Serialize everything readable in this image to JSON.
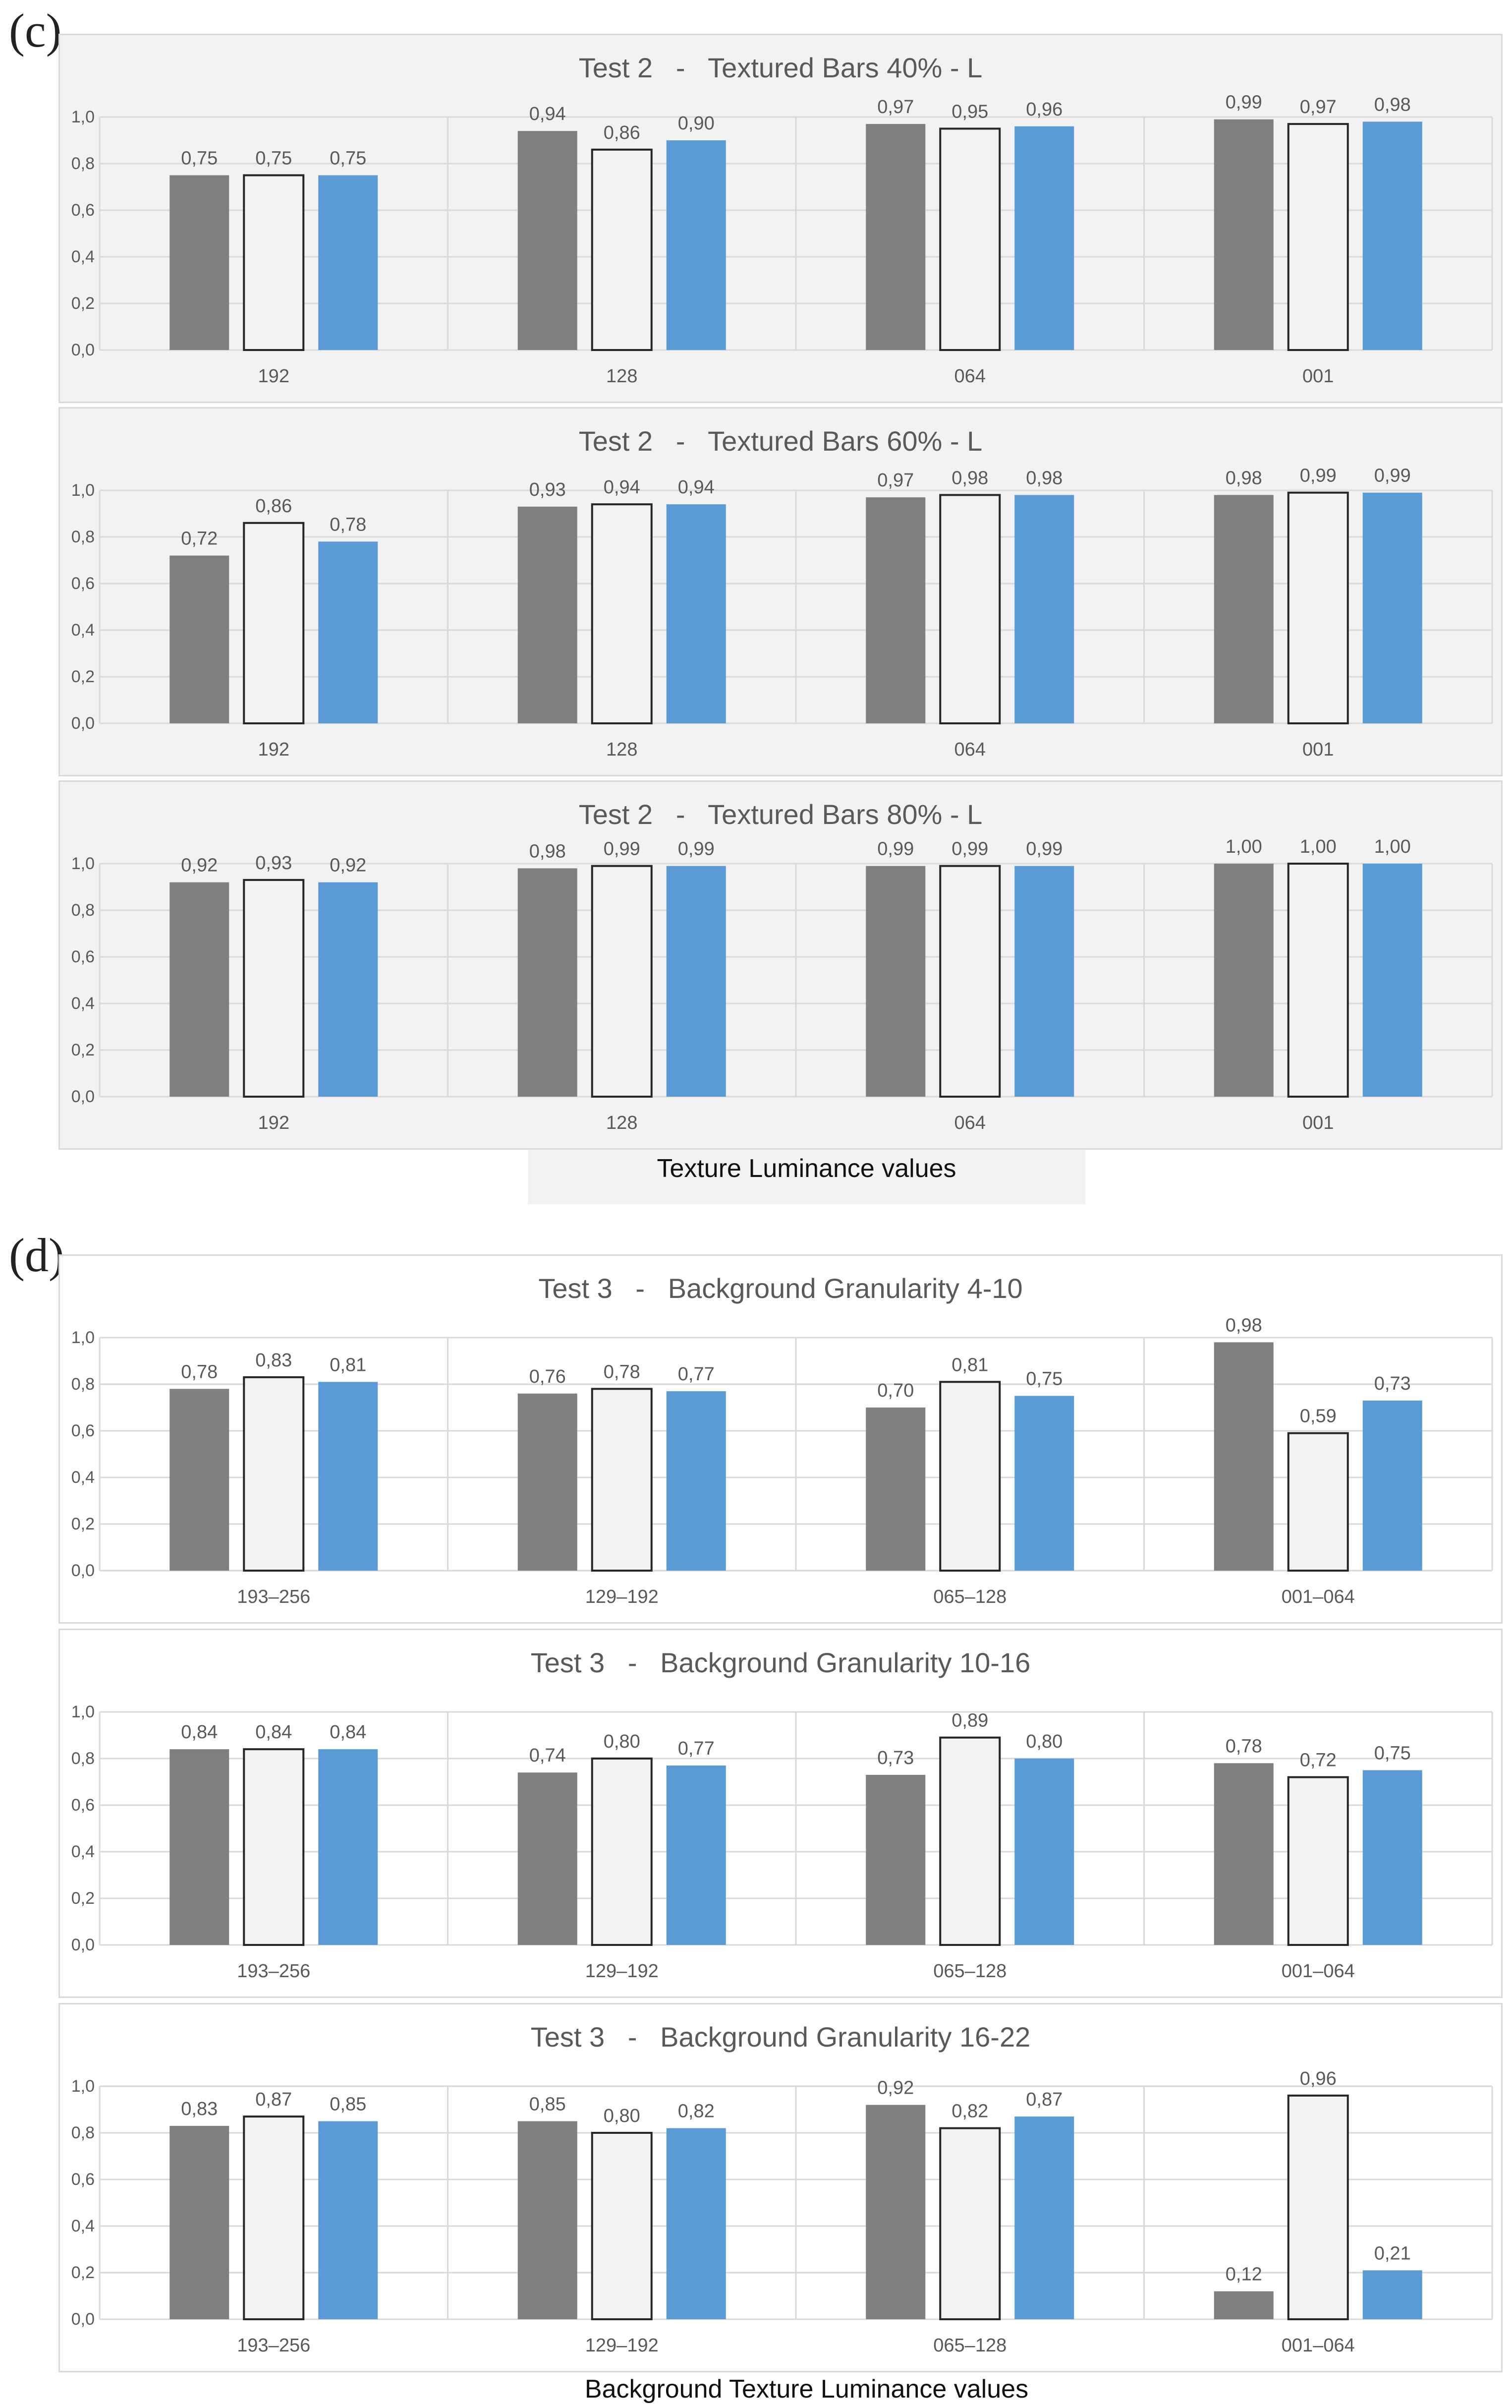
{
  "sections": [
    {
      "label": "(c)",
      "xlabel": "Texture Luminance values"
    },
    {
      "label": "(d)",
      "xlabel": "Background Texture Luminance values"
    }
  ],
  "colors": {
    "series1": "#7f7f7f",
    "series2": "#f2f2f2",
    "series3": "#5b9bd5",
    "series2_border": "#262626",
    "grid": "#d9d9d9",
    "text": "#595959"
  },
  "chart_data": [
    {
      "type": "bar",
      "title": "Test 2   -   Textured Bars 40% - L",
      "categories": [
        "192",
        "128",
        "064",
        "001"
      ],
      "series": [
        {
          "name": "series 1",
          "values": [
            0.75,
            0.94,
            0.97,
            0.99
          ],
          "labels": [
            "0,75",
            "0,94",
            "0,97",
            "0,99"
          ]
        },
        {
          "name": "series 2",
          "values": [
            0.75,
            0.86,
            0.95,
            0.97
          ],
          "labels": [
            "0,75",
            "0,86",
            "0,95",
            "0,97"
          ]
        },
        {
          "name": "series 3",
          "values": [
            0.75,
            0.9,
            0.96,
            0.98
          ],
          "labels": [
            "0,75",
            "0,90",
            "0,96",
            "0,98"
          ]
        }
      ],
      "ylim": [
        0,
        1
      ],
      "yticks": [
        "0,0",
        "0,2",
        "0,4",
        "0,6",
        "0,8",
        "1,0"
      ],
      "xlabel": "Texture Luminance values",
      "ylabel": "",
      "legend": "none",
      "grid": true
    },
    {
      "type": "bar",
      "title": "Test 2   -   Textured Bars 60% - L",
      "categories": [
        "192",
        "128",
        "064",
        "001"
      ],
      "series": [
        {
          "name": "series 1",
          "values": [
            0.72,
            0.93,
            0.97,
            0.98
          ],
          "labels": [
            "0,72",
            "0,93",
            "0,97",
            "0,98"
          ]
        },
        {
          "name": "series 2",
          "values": [
            0.86,
            0.94,
            0.98,
            0.99
          ],
          "labels": [
            "0,86",
            "0,94",
            "0,98",
            "0,99"
          ]
        },
        {
          "name": "series 3",
          "values": [
            0.78,
            0.94,
            0.98,
            0.99
          ],
          "labels": [
            "0,78",
            "0,94",
            "0,98",
            "0,99"
          ]
        }
      ],
      "ylim": [
        0,
        1
      ],
      "yticks": [
        "0,0",
        "0,2",
        "0,4",
        "0,6",
        "0,8",
        "1,0"
      ],
      "xlabel": "Texture Luminance values",
      "ylabel": "",
      "legend": "none",
      "grid": true
    },
    {
      "type": "bar",
      "title": "Test 2   -   Textured Bars 80% - L",
      "categories": [
        "192",
        "128",
        "064",
        "001"
      ],
      "series": [
        {
          "name": "series 1",
          "values": [
            0.92,
            0.98,
            0.99,
            1.0
          ],
          "labels": [
            "0,92",
            "0,98",
            "0,99",
            "1,00"
          ]
        },
        {
          "name": "series 2",
          "values": [
            0.93,
            0.99,
            0.99,
            1.0
          ],
          "labels": [
            "0,93",
            "0,99",
            "0,99",
            "1,00"
          ]
        },
        {
          "name": "series 3",
          "values": [
            0.92,
            0.99,
            0.99,
            1.0
          ],
          "labels": [
            "0,92",
            "0,99",
            "0,99",
            "1,00"
          ]
        }
      ],
      "ylim": [
        0,
        1
      ],
      "yticks": [
        "0,0",
        "0,2",
        "0,4",
        "0,6",
        "0,8",
        "1,0"
      ],
      "xlabel": "Texture Luminance values",
      "ylabel": "",
      "legend": "none",
      "grid": true
    },
    {
      "type": "bar",
      "title": "Test 3   -   Background Granularity 4-10",
      "categories": [
        "193–256",
        "129–192",
        "065–128",
        "001–064"
      ],
      "series": [
        {
          "name": "series 1",
          "values": [
            0.78,
            0.76,
            0.7,
            0.98
          ],
          "labels": [
            "0,78",
            "0,76",
            "0,70",
            "0,98"
          ]
        },
        {
          "name": "series 2",
          "values": [
            0.83,
            0.78,
            0.81,
            0.59
          ],
          "labels": [
            "0,83",
            "0,78",
            "0,81",
            "0,59"
          ]
        },
        {
          "name": "series 3",
          "values": [
            0.81,
            0.77,
            0.75,
            0.73
          ],
          "labels": [
            "0,81",
            "0,77",
            "0,75",
            "0,73"
          ]
        }
      ],
      "ylim": [
        0,
        1
      ],
      "yticks": [
        "0,0",
        "0,2",
        "0,4",
        "0,6",
        "0,8",
        "1,0"
      ],
      "xlabel": "Background Texture Luminance values",
      "ylabel": "",
      "legend": "none",
      "grid": true
    },
    {
      "type": "bar",
      "title": "Test 3   -   Background Granularity 10-16",
      "categories": [
        "193–256",
        "129–192",
        "065–128",
        "001–064"
      ],
      "series": [
        {
          "name": "series 1",
          "values": [
            0.84,
            0.74,
            0.73,
            0.78
          ],
          "labels": [
            "0,84",
            "0,74",
            "0,73",
            "0,78"
          ]
        },
        {
          "name": "series 2",
          "values": [
            0.84,
            0.8,
            0.89,
            0.72
          ],
          "labels": [
            "0,84",
            "0,80",
            "0,89",
            "0,72"
          ]
        },
        {
          "name": "series 3",
          "values": [
            0.84,
            0.77,
            0.8,
            0.75
          ],
          "labels": [
            "0,84",
            "0,77",
            "0,80",
            "0,75"
          ]
        }
      ],
      "ylim": [
        0,
        1
      ],
      "yticks": [
        "0,0",
        "0,2",
        "0,4",
        "0,6",
        "0,8",
        "1,0"
      ],
      "xlabel": "Background Texture Luminance values",
      "ylabel": "",
      "legend": "none",
      "grid": true
    },
    {
      "type": "bar",
      "title": "Test 3   -   Background Granularity 16-22",
      "categories": [
        "193–256",
        "129–192",
        "065–128",
        "001–064"
      ],
      "series": [
        {
          "name": "series 1",
          "values": [
            0.83,
            0.85,
            0.92,
            0.12
          ],
          "labels": [
            "0,83",
            "0,85",
            "0,92",
            "0,12"
          ]
        },
        {
          "name": "series 2",
          "values": [
            0.87,
            0.8,
            0.82,
            0.96
          ],
          "labels": [
            "0,87",
            "0,80",
            "0,82",
            "0,96"
          ]
        },
        {
          "name": "series 3",
          "values": [
            0.85,
            0.82,
            0.87,
            0.21
          ],
          "labels": [
            "0,85",
            "0,82",
            "0,87",
            "0,21"
          ]
        }
      ],
      "ylim": [
        0,
        1
      ],
      "yticks": [
        "0,0",
        "0,2",
        "0,4",
        "0,6",
        "0,8",
        "1,0"
      ],
      "xlabel": "Background Texture Luminance values",
      "ylabel": "",
      "legend": "none",
      "grid": true
    }
  ]
}
